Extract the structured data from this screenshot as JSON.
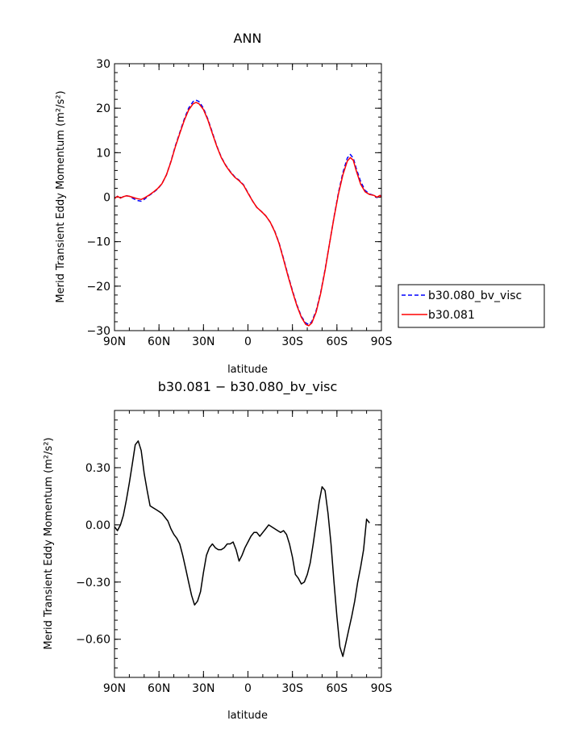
{
  "chart_data": [
    {
      "type": "line",
      "title": "ANN",
      "xlabel": "latitude",
      "ylabel": "Merid Transient Eddy Momentum (m²/s²)",
      "x_tick_labels": [
        "90N",
        "60N",
        "30N",
        "0",
        "30S",
        "60S",
        "90S"
      ],
      "x_ticks": [
        90,
        60,
        30,
        0,
        -30,
        -60,
        -90
      ],
      "xlim": [
        90,
        -90
      ],
      "ylim": [
        -30,
        30
      ],
      "y_ticks": [
        -30,
        -20,
        -10,
        0,
        10,
        20,
        30
      ],
      "y_tick_labels": [
        "−30",
        "−20",
        "−10",
        "0",
        "10",
        "20",
        "30"
      ],
      "legend_position": "right",
      "series": [
        {
          "name": "b30.080_bv_visc",
          "color": "#0000ff",
          "dash": "dashed",
          "points": [
            [
              90,
              -0.3
            ],
            [
              88,
              0.2
            ],
            [
              86,
              -0.2
            ],
            [
              84,
              0.1
            ],
            [
              82,
              0.3
            ],
            [
              80,
              0.2
            ],
            [
              78,
              -0.2
            ],
            [
              75,
              -0.7
            ],
            [
              72,
              -0.9
            ],
            [
              70,
              -0.5
            ],
            [
              67,
              0.3
            ],
            [
              64,
              1.0
            ],
            [
              61,
              1.8
            ],
            [
              58,
              3.0
            ],
            [
              55,
              5.0
            ],
            [
              52,
              8.0
            ],
            [
              49,
              11.5
            ],
            [
              46,
              14.5
            ],
            [
              43,
              17.5
            ],
            [
              40,
              20.0
            ],
            [
              37,
              21.5
            ],
            [
              35,
              21.8
            ],
            [
              33,
              21.5
            ],
            [
              30,
              20.0
            ],
            [
              27,
              17.5
            ],
            [
              24,
              14.5
            ],
            [
              21,
              11.5
            ],
            [
              18,
              9.0
            ],
            [
              15,
              7.2
            ],
            [
              12,
              5.8
            ],
            [
              9,
              4.6
            ],
            [
              6,
              3.8
            ],
            [
              3,
              2.8
            ],
            [
              0,
              1.0
            ],
            [
              -3,
              -0.8
            ],
            [
              -6,
              -2.3
            ],
            [
              -9,
              -3.2
            ],
            [
              -12,
              -4.2
            ],
            [
              -15,
              -5.6
            ],
            [
              -18,
              -7.6
            ],
            [
              -21,
              -10.3
            ],
            [
              -24,
              -13.8
            ],
            [
              -27,
              -17.5
            ],
            [
              -30,
              -21.0
            ],
            [
              -33,
              -24.2
            ],
            [
              -36,
              -26.8
            ],
            [
              -39,
              -28.3
            ],
            [
              -41,
              -28.6
            ],
            [
              -43,
              -28.0
            ],
            [
              -46,
              -25.5
            ],
            [
              -49,
              -21.5
            ],
            [
              -52,
              -16.3
            ],
            [
              -55,
              -10.5
            ],
            [
              -58,
              -4.5
            ],
            [
              -61,
              1.0
            ],
            [
              -64,
              5.5
            ],
            [
              -67,
              8.8
            ],
            [
              -69,
              9.6
            ],
            [
              -71,
              8.8
            ],
            [
              -73,
              6.5
            ],
            [
              -76,
              3.5
            ],
            [
              -79,
              1.5
            ],
            [
              -82,
              0.7
            ],
            [
              -85,
              0.4
            ],
            [
              -87,
              -0.1
            ],
            [
              -89,
              0.5
            ],
            [
              -90,
              0.0
            ]
          ]
        },
        {
          "name": "b30.081",
          "color": "#ff0000",
          "dash": "solid",
          "points": [
            [
              90,
              -0.3
            ],
            [
              88,
              0.2
            ],
            [
              86,
              -0.2
            ],
            [
              84,
              0.1
            ],
            [
              82,
              0.3
            ],
            [
              80,
              0.2
            ],
            [
              78,
              0.0
            ],
            [
              75,
              -0.3
            ],
            [
              72,
              -0.5
            ],
            [
              70,
              -0.2
            ],
            [
              67,
              0.4
            ],
            [
              64,
              1.1
            ],
            [
              61,
              1.9
            ],
            [
              58,
              3.0
            ],
            [
              55,
              5.0
            ],
            [
              52,
              7.9
            ],
            [
              49,
              11.3
            ],
            [
              46,
              14.3
            ],
            [
              43,
              17.2
            ],
            [
              40,
              19.6
            ],
            [
              37,
              21.0
            ],
            [
              35,
              21.3
            ],
            [
              33,
              21.0
            ],
            [
              30,
              19.7
            ],
            [
              27,
              17.3
            ],
            [
              24,
              14.3
            ],
            [
              21,
              11.4
            ],
            [
              18,
              8.9
            ],
            [
              15,
              7.1
            ],
            [
              12,
              5.7
            ],
            [
              9,
              4.5
            ],
            [
              6,
              3.7
            ],
            [
              3,
              2.7
            ],
            [
              0,
              0.9
            ],
            [
              -3,
              -0.8
            ],
            [
              -6,
              -2.3
            ],
            [
              -9,
              -3.2
            ],
            [
              -12,
              -4.2
            ],
            [
              -15,
              -5.6
            ],
            [
              -18,
              -7.7
            ],
            [
              -21,
              -10.4
            ],
            [
              -24,
              -14.0
            ],
            [
              -27,
              -17.7
            ],
            [
              -30,
              -21.2
            ],
            [
              -33,
              -24.4
            ],
            [
              -36,
              -27.0
            ],
            [
              -39,
              -28.6
            ],
            [
              -41,
              -28.9
            ],
            [
              -43,
              -28.3
            ],
            [
              -46,
              -25.8
            ],
            [
              -49,
              -21.7
            ],
            [
              -52,
              -16.5
            ],
            [
              -55,
              -10.5
            ],
            [
              -58,
              -4.6
            ],
            [
              -61,
              0.7
            ],
            [
              -64,
              5.0
            ],
            [
              -67,
              8.1
            ],
            [
              -69,
              8.9
            ],
            [
              -71,
              8.3
            ],
            [
              -73,
              6.0
            ],
            [
              -76,
              2.9
            ],
            [
              -79,
              1.2
            ],
            [
              -82,
              0.6
            ],
            [
              -85,
              0.4
            ],
            [
              -87,
              0.0
            ],
            [
              -89,
              0.4
            ],
            [
              -90,
              0.0
            ]
          ]
        }
      ]
    },
    {
      "type": "line",
      "title": "b30.081 − b30.080_bv_visc",
      "xlabel": "latitude",
      "ylabel": "Merid Transient Eddy Momentum (m²/s²)",
      "x_tick_labels": [
        "90N",
        "60N",
        "30N",
        "0",
        "30S",
        "60S",
        "90S"
      ],
      "x_ticks": [
        90,
        60,
        30,
        0,
        -30,
        -60,
        -90
      ],
      "xlim": [
        90,
        -90
      ],
      "ylim": [
        -0.8,
        0.6
      ],
      "y_ticks": [
        -0.6,
        -0.3,
        0.0,
        0.3
      ],
      "y_tick_labels": [
        "−0.60",
        "−0.30",
        "0.00",
        "0.30"
      ],
      "series": [
        {
          "color": "#000000",
          "dash": "solid",
          "points": [
            [
              90,
              -0.01
            ],
            [
              88,
              -0.03
            ],
            [
              86,
              0.0
            ],
            [
              84,
              0.05
            ],
            [
              82,
              0.13
            ],
            [
              80,
              0.22
            ],
            [
              78,
              0.32
            ],
            [
              76,
              0.42
            ],
            [
              74,
              0.44
            ],
            [
              72,
              0.39
            ],
            [
              70,
              0.27
            ],
            [
              68,
              0.18
            ],
            [
              66,
              0.1
            ],
            [
              64,
              0.09
            ],
            [
              62,
              0.08
            ],
            [
              60,
              0.07
            ],
            [
              58,
              0.06
            ],
            [
              56,
              0.04
            ],
            [
              54,
              0.02
            ],
            [
              52,
              -0.02
            ],
            [
              50,
              -0.05
            ],
            [
              48,
              -0.07
            ],
            [
              46,
              -0.1
            ],
            [
              44,
              -0.16
            ],
            [
              42,
              -0.23
            ],
            [
              40,
              -0.3
            ],
            [
              38,
              -0.37
            ],
            [
              36,
              -0.42
            ],
            [
              34,
              -0.4
            ],
            [
              32,
              -0.35
            ],
            [
              30,
              -0.25
            ],
            [
              28,
              -0.16
            ],
            [
              26,
              -0.12
            ],
            [
              24,
              -0.1
            ],
            [
              22,
              -0.12
            ],
            [
              20,
              -0.13
            ],
            [
              18,
              -0.13
            ],
            [
              16,
              -0.12
            ],
            [
              14,
              -0.1
            ],
            [
              12,
              -0.1
            ],
            [
              10,
              -0.09
            ],
            [
              8,
              -0.13
            ],
            [
              6,
              -0.19
            ],
            [
              4,
              -0.16
            ],
            [
              2,
              -0.12
            ],
            [
              0,
              -0.09
            ],
            [
              -2,
              -0.06
            ],
            [
              -4,
              -0.04
            ],
            [
              -6,
              -0.04
            ],
            [
              -8,
              -0.06
            ],
            [
              -10,
              -0.04
            ],
            [
              -12,
              -0.02
            ],
            [
              -14,
              0.0
            ],
            [
              -16,
              -0.01
            ],
            [
              -18,
              -0.02
            ],
            [
              -20,
              -0.03
            ],
            [
              -22,
              -0.04
            ],
            [
              -24,
              -0.03
            ],
            [
              -26,
              -0.05
            ],
            [
              -28,
              -0.1
            ],
            [
              -30,
              -0.17
            ],
            [
              -32,
              -0.26
            ],
            [
              -34,
              -0.28
            ],
            [
              -36,
              -0.31
            ],
            [
              -38,
              -0.3
            ],
            [
              -40,
              -0.26
            ],
            [
              -42,
              -0.2
            ],
            [
              -44,
              -0.1
            ],
            [
              -46,
              0.01
            ],
            [
              -48,
              0.12
            ],
            [
              -50,
              0.2
            ],
            [
              -52,
              0.18
            ],
            [
              -54,
              0.06
            ],
            [
              -56,
              -0.1
            ],
            [
              -58,
              -0.3
            ],
            [
              -60,
              -0.48
            ],
            [
              -62,
              -0.64
            ],
            [
              -64,
              -0.69
            ],
            [
              -66,
              -0.62
            ],
            [
              -68,
              -0.55
            ],
            [
              -70,
              -0.48
            ],
            [
              -72,
              -0.4
            ],
            [
              -74,
              -0.3
            ],
            [
              -76,
              -0.22
            ],
            [
              -78,
              -0.13
            ],
            [
              -80,
              0.03
            ],
            [
              -82,
              0.01
            ]
          ]
        }
      ]
    }
  ]
}
